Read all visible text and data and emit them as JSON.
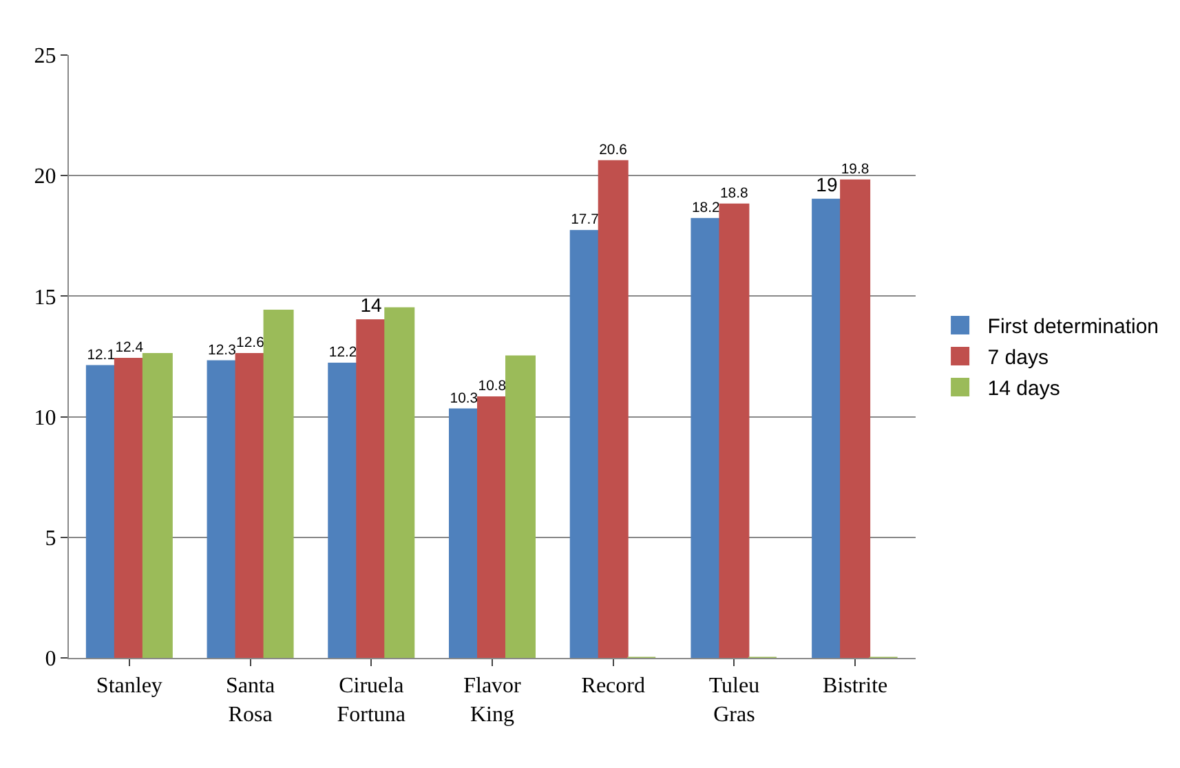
{
  "chart_data": {
    "type": "bar",
    "categories": [
      "Stanley",
      "Santa\nRosa",
      "Ciruela\nFortuna",
      "Flavor\nKing",
      "Record",
      "Tuleu\nGras",
      "Bistrite"
    ],
    "series": [
      {
        "name": "First determination",
        "color": "#4f81bd",
        "values": [
          12.1,
          12.3,
          12.2,
          10.3,
          17.7,
          18.2,
          19
        ],
        "value_labels": [
          "12.1",
          "12.3",
          "12.2",
          "10.3",
          "17.7",
          "18.2",
          "19"
        ]
      },
      {
        "name": "7 days",
        "color": "#c0504d",
        "values": [
          12.4,
          12.6,
          14,
          10.8,
          20.6,
          18.8,
          19.8
        ],
        "value_labels": [
          "12.4",
          "12.6",
          "14",
          "10.8",
          "20.6",
          "18.8",
          "19.8"
        ]
      },
      {
        "name": "14 days",
        "color": "#9bbb59",
        "values": [
          12.6,
          14.4,
          14.5,
          12.5,
          0,
          0,
          0
        ]
      }
    ],
    "ylim": [
      0,
      25
    ],
    "yticks": [
      0,
      5,
      10,
      15,
      20,
      25
    ],
    "grid": "y",
    "legend": "right"
  }
}
